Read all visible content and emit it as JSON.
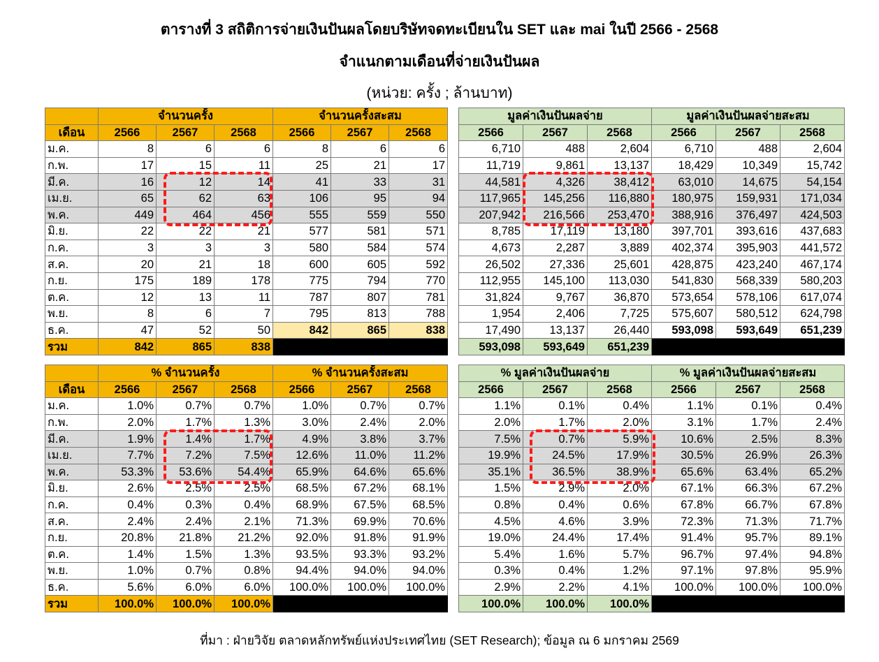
{
  "title_line1": "ตารางที่ 3 สถิติการจ่ายเงินปันผลโดยบริษัทจดทะเบียนใน SET และ mai ในปี 2566 - 2568",
  "title_line2": "จำแนกตามเดือนที่จ่ายเงินปันผล",
  "unit_line": "(หน่วย:  ครั้ง ; ล้านบาท)",
  "month_header": "เดือน",
  "years": [
    "2566",
    "2567",
    "2568"
  ],
  "total_label": "รวม",
  "months": [
    "ม.ค.",
    "ก.พ.",
    "มี.ค.",
    "เม.ย.",
    "พ.ค.",
    "มิ.ย.",
    "ก.ค.",
    "ส.ค.",
    "ก.ย.",
    "ต.ค.",
    "พ.ย.",
    "ธ.ค."
  ],
  "table_top": {
    "group_headers": [
      "จำนวนครั้ง",
      "จำนวนครั้งสะสม",
      "มูลค่าเงินปันผลจ่าย",
      "มูลค่าเงินปันผลจ่ายสะสม"
    ],
    "rows": [
      [
        "8",
        "6",
        "6",
        "8",
        "6",
        "6",
        "6,710",
        "488",
        "2,604",
        "6,710",
        "488",
        "2,604"
      ],
      [
        "17",
        "15",
        "11",
        "25",
        "21",
        "17",
        "11,719",
        "9,861",
        "13,137",
        "18,429",
        "10,349",
        "15,742"
      ],
      [
        "16",
        "12",
        "14",
        "41",
        "33",
        "31",
        "44,581",
        "4,326",
        "38,412",
        "63,010",
        "14,675",
        "54,154"
      ],
      [
        "65",
        "62",
        "63",
        "106",
        "95",
        "94",
        "117,965",
        "145,256",
        "116,880",
        "180,975",
        "159,931",
        "171,034"
      ],
      [
        "449",
        "464",
        "456",
        "555",
        "559",
        "550",
        "207,942",
        "216,566",
        "253,470",
        "388,916",
        "376,497",
        "424,503"
      ],
      [
        "22",
        "22",
        "21",
        "577",
        "581",
        "571",
        "8,785",
        "17,119",
        "13,180",
        "397,701",
        "393,616",
        "437,683"
      ],
      [
        "3",
        "3",
        "3",
        "580",
        "584",
        "574",
        "4,673",
        "2,287",
        "3,889",
        "402,374",
        "395,903",
        "441,572"
      ],
      [
        "20",
        "21",
        "18",
        "600",
        "605",
        "592",
        "26,502",
        "27,336",
        "25,601",
        "428,875",
        "423,240",
        "467,174"
      ],
      [
        "175",
        "189",
        "178",
        "775",
        "794",
        "770",
        "112,955",
        "145,100",
        "113,030",
        "541,830",
        "568,339",
        "580,203"
      ],
      [
        "12",
        "13",
        "11",
        "787",
        "807",
        "781",
        "31,824",
        "9,767",
        "36,870",
        "573,654",
        "578,106",
        "617,074"
      ],
      [
        "8",
        "6",
        "7",
        "795",
        "813",
        "788",
        "1,954",
        "2,406",
        "7,725",
        "575,607",
        "580,512",
        "624,798"
      ],
      [
        "47",
        "52",
        "50",
        "842",
        "865",
        "838",
        "17,490",
        "13,137",
        "26,440",
        "593,098",
        "593,649",
        "651,239"
      ]
    ],
    "totals": [
      "842",
      "865",
      "838",
      "",
      "",
      "",
      "593,098",
      "593,649",
      "651,239",
      "",
      "",
      ""
    ]
  },
  "table_bottom": {
    "group_headers": [
      "% จำนวนครั้ง",
      "% จำนวนครั้งสะสม",
      "% มูลค่าเงินปันผลจ่าย",
      "% มูลค่าเงินปันผลจ่ายสะสม"
    ],
    "rows": [
      [
        "1.0%",
        "0.7%",
        "0.7%",
        "1.0%",
        "0.7%",
        "0.7%",
        "1.1%",
        "0.1%",
        "0.4%",
        "1.1%",
        "0.1%",
        "0.4%"
      ],
      [
        "2.0%",
        "1.7%",
        "1.3%",
        "3.0%",
        "2.4%",
        "2.0%",
        "2.0%",
        "1.7%",
        "2.0%",
        "3.1%",
        "1.7%",
        "2.4%"
      ],
      [
        "1.9%",
        "1.4%",
        "1.7%",
        "4.9%",
        "3.8%",
        "3.7%",
        "7.5%",
        "0.7%",
        "5.9%",
        "10.6%",
        "2.5%",
        "8.3%"
      ],
      [
        "7.7%",
        "7.2%",
        "7.5%",
        "12.6%",
        "11.0%",
        "11.2%",
        "19.9%",
        "24.5%",
        "17.9%",
        "30.5%",
        "26.9%",
        "26.3%"
      ],
      [
        "53.3%",
        "53.6%",
        "54.4%",
        "65.9%",
        "64.6%",
        "65.6%",
        "35.1%",
        "36.5%",
        "38.9%",
        "65.6%",
        "63.4%",
        "65.2%"
      ],
      [
        "2.6%",
        "2.5%",
        "2.5%",
        "68.5%",
        "67.2%",
        "68.1%",
        "1.5%",
        "2.9%",
        "2.0%",
        "67.1%",
        "66.3%",
        "67.2%"
      ],
      [
        "0.4%",
        "0.3%",
        "0.4%",
        "68.9%",
        "67.5%",
        "68.5%",
        "0.8%",
        "0.4%",
        "0.6%",
        "67.8%",
        "66.7%",
        "67.8%"
      ],
      [
        "2.4%",
        "2.4%",
        "2.1%",
        "71.3%",
        "69.9%",
        "70.6%",
        "4.5%",
        "4.6%",
        "3.9%",
        "72.3%",
        "71.3%",
        "71.7%"
      ],
      [
        "20.8%",
        "21.8%",
        "21.2%",
        "92.0%",
        "91.8%",
        "91.9%",
        "19.0%",
        "24.4%",
        "17.4%",
        "91.4%",
        "95.7%",
        "89.1%"
      ],
      [
        "1.4%",
        "1.5%",
        "1.3%",
        "93.5%",
        "93.3%",
        "93.2%",
        "5.4%",
        "1.6%",
        "5.7%",
        "96.7%",
        "97.4%",
        "94.8%"
      ],
      [
        "1.0%",
        "0.7%",
        "0.8%",
        "94.4%",
        "94.0%",
        "94.0%",
        "0.3%",
        "0.4%",
        "1.2%",
        "97.1%",
        "97.8%",
        "95.9%"
      ],
      [
        "5.6%",
        "6.0%",
        "6.0%",
        "100.0%",
        "100.0%",
        "100.0%",
        "2.9%",
        "2.2%",
        "4.1%",
        "100.0%",
        "100.0%",
        "100.0%"
      ]
    ],
    "totals": [
      "100.0%",
      "100.0%",
      "100.0%",
      "",
      "",
      "",
      "100.0%",
      "100.0%",
      "100.0%",
      "",
      "",
      ""
    ]
  },
  "source": "ที่มา : ฝ่ายวิจัย ตลาดหลักทรัพย์แห่งประเทศไทย (SET Research); ข้อมูล ณ 6 มกราคม 2569",
  "colors": {
    "header_orange": "#f5b400",
    "header_green": "#d0e4bf",
    "highlight_gray": "#d9d9d9",
    "highlight_cream": "#fde9a8",
    "annotation_red": "#ff1a1a"
  }
}
